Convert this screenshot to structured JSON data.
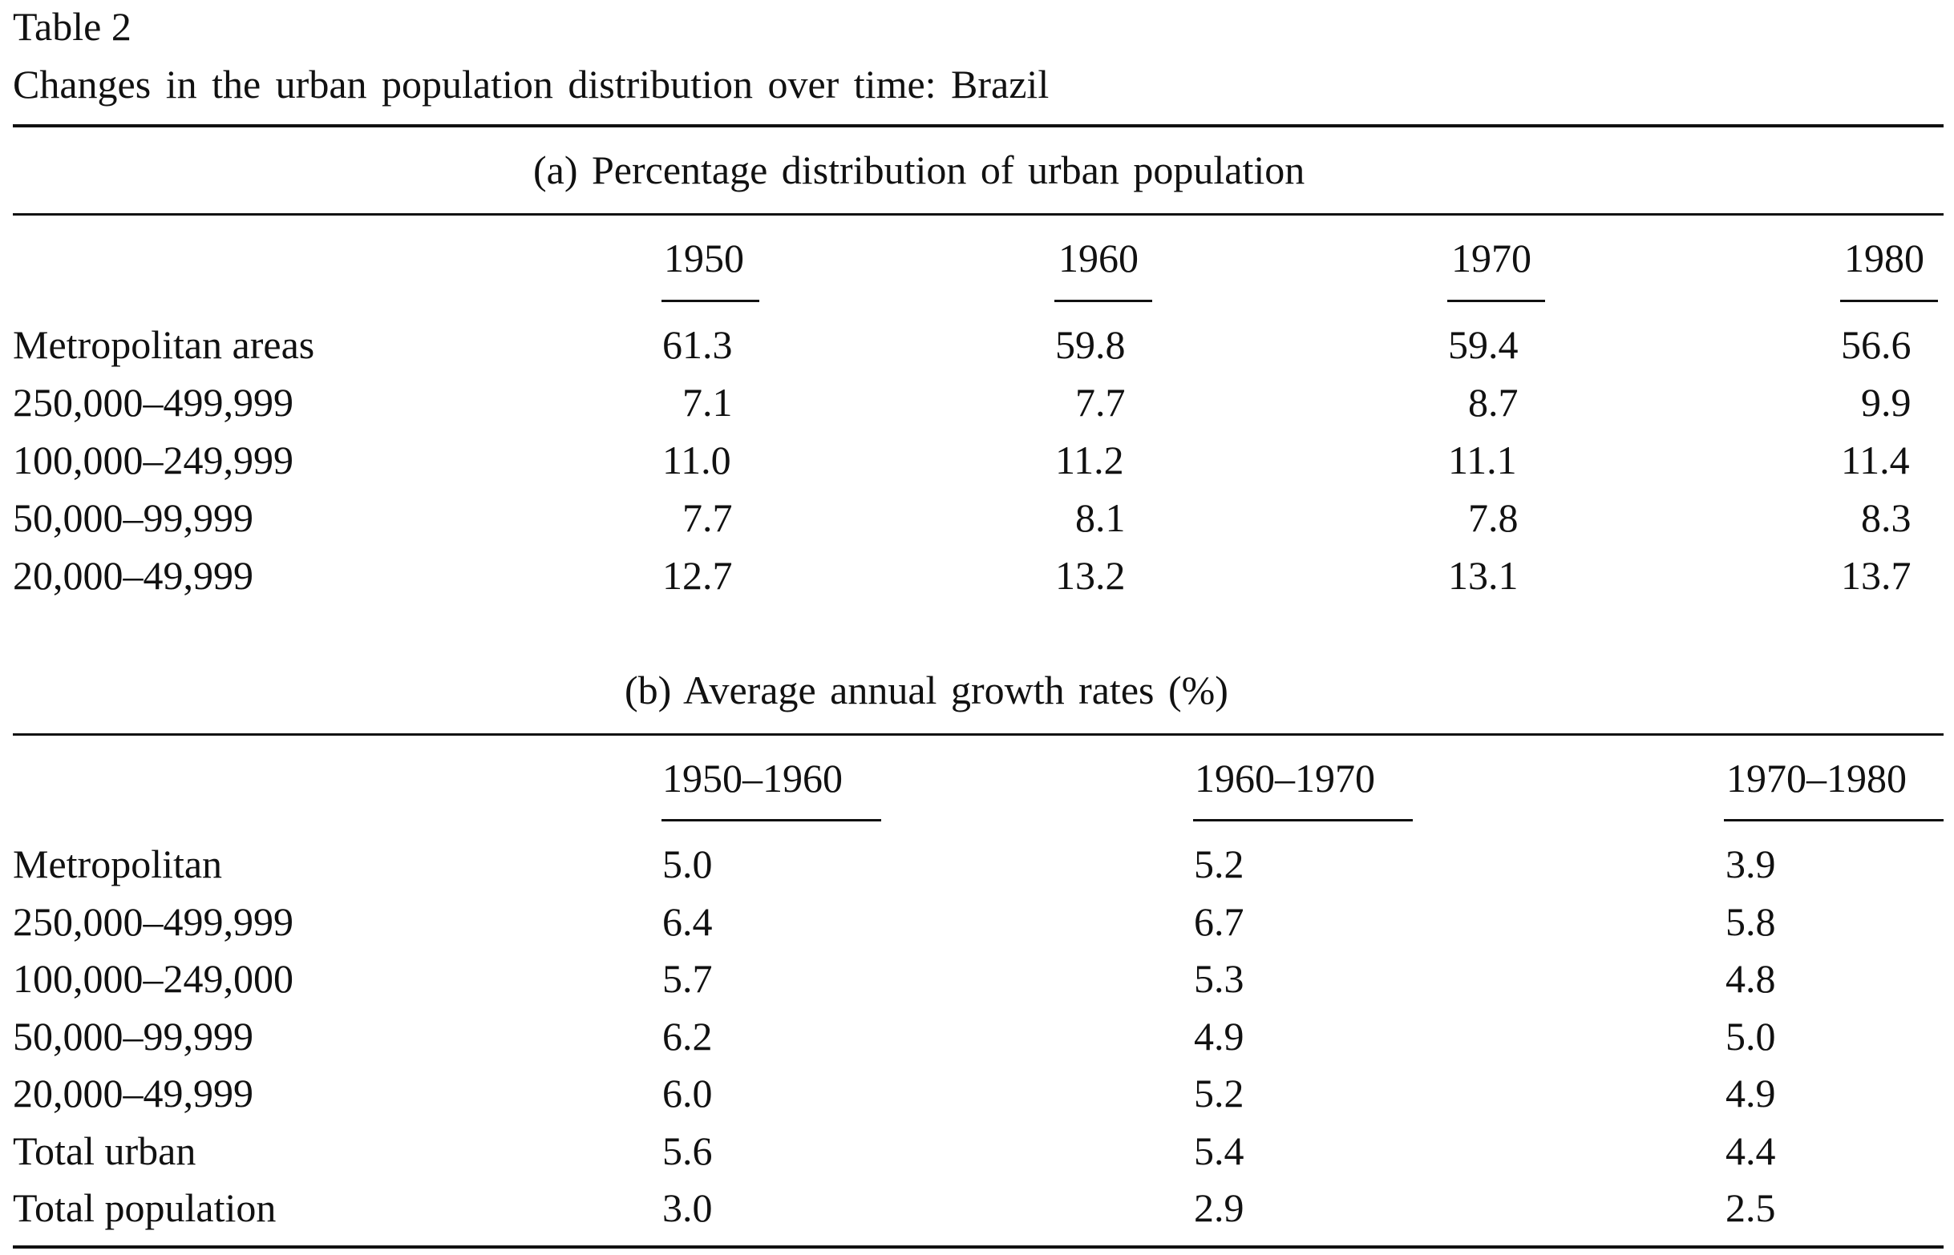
{
  "table_label": "Table 2",
  "caption": "Changes in the urban population distribution over time: Brazil",
  "panel_a": {
    "title": "(a) Percentage distribution of urban population",
    "years": [
      "1950",
      "1960",
      "1970",
      "1980"
    ],
    "rows": [
      {
        "label": "Metropolitan areas",
        "values": [
          "61.3",
          "59.8",
          "59.4",
          "56.6"
        ]
      },
      {
        "label": "250,000–499,999",
        "values": [
          "7.1",
          "7.7",
          "8.7",
          "9.9"
        ]
      },
      {
        "label": "100,000–249,999",
        "values": [
          "11.0",
          "11.2",
          "11.1",
          "11.4"
        ]
      },
      {
        "label": "50,000–99,999",
        "values": [
          "7.7",
          "8.1",
          "7.8",
          "8.3"
        ]
      },
      {
        "label": "20,000–49,999",
        "values": [
          "12.7",
          "13.2",
          "13.1",
          "13.7"
        ]
      }
    ]
  },
  "panel_b": {
    "title": "(b) Average annual growth rates (%)",
    "periods": [
      "1950–1960",
      "1960–1970",
      "1970–1980"
    ],
    "rows": [
      {
        "label": "Metropolitan",
        "values": [
          "5.0",
          "5.2",
          "3.9"
        ]
      },
      {
        "label": "250,000–499,999",
        "values": [
          "6.4",
          "6.7",
          "5.8"
        ]
      },
      {
        "label": "100,000–249,000",
        "values": [
          "5.7",
          "5.3",
          "4.8"
        ]
      },
      {
        "label": "50,000–99,999",
        "values": [
          "6.2",
          "4.9",
          "5.0"
        ]
      },
      {
        "label": "20,000–49,999",
        "values": [
          "6.0",
          "5.2",
          "4.9"
        ]
      },
      {
        "label": "Total urban",
        "values": [
          "5.6",
          "5.4",
          "4.4"
        ]
      },
      {
        "label": "Total population",
        "values": [
          "3.0",
          "2.9",
          "2.5"
        ]
      }
    ]
  }
}
